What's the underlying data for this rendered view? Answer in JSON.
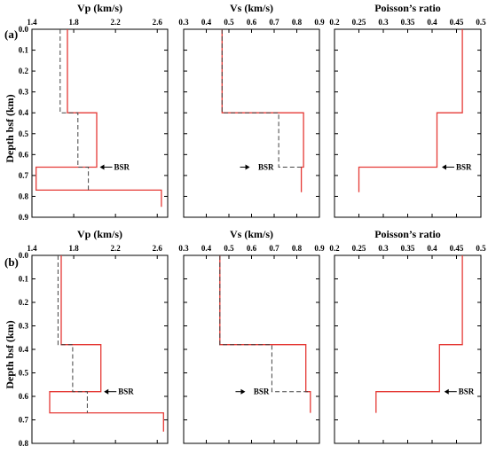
{
  "figure": {
    "ylabel": "Depth bsf (km)",
    "colors": {
      "red": "#e53935",
      "dash": "#444444",
      "frame": "#000000"
    }
  },
  "chart_data": [
    {
      "type": "line",
      "panel": "(a)",
      "title": "Vp (km/s)",
      "xlim": [
        1.4,
        2.7
      ],
      "ylim": [
        0,
        0.9
      ],
      "xticks": [
        {
          "v": 1.4,
          "t": "1.4"
        },
        {
          "v": 1.8,
          "t": "1.8"
        },
        {
          "v": 2.2,
          "t": "2.2"
        },
        {
          "v": 2.6,
          "t": "2.6"
        }
      ],
      "yticks": [
        {
          "v": 0.0,
          "t": "0.0"
        },
        {
          "v": 0.1,
          "t": "0.1"
        },
        {
          "v": 0.2,
          "t": "0.2"
        },
        {
          "v": 0.3,
          "t": "0.3"
        },
        {
          "v": 0.4,
          "t": "0.4"
        },
        {
          "v": 0.5,
          "t": "0.5"
        },
        {
          "v": 0.6,
          "t": "0.6"
        },
        {
          "v": 0.7,
          "t": "0.7"
        },
        {
          "v": 0.8,
          "t": "0.8"
        },
        {
          "v": 0.9,
          "t": "0.9"
        }
      ],
      "series": [
        {
          "style": "solid",
          "points": [
            [
              1.74,
              0
            ],
            [
              1.74,
              0.4
            ],
            [
              2.02,
              0.4
            ],
            [
              2.02,
              0.66
            ],
            [
              1.44,
              0.66
            ],
            [
              1.44,
              0.77
            ],
            [
              2.64,
              0.77
            ],
            [
              2.64,
              0.85
            ]
          ]
        },
        {
          "style": "dashed",
          "points": [
            [
              1.67,
              0
            ],
            [
              1.67,
              0.4
            ],
            [
              1.84,
              0.4
            ],
            [
              1.84,
              0.66
            ],
            [
              1.94,
              0.66
            ],
            [
              1.94,
              0.77
            ]
          ]
        }
      ],
      "annotation": {
        "text": "BSR",
        "x": 2.05,
        "y": 0.66,
        "side": "right"
      }
    },
    {
      "type": "line",
      "panel": "(a)",
      "title": "Vs (km/s)",
      "xlim": [
        0.3,
        0.9
      ],
      "ylim": [
        0,
        0.9
      ],
      "xticks": [
        {
          "v": 0.3,
          "t": "0.3"
        },
        {
          "v": 0.4,
          "t": "0.4"
        },
        {
          "v": 0.5,
          "t": "0.5"
        },
        {
          "v": 0.6,
          "t": "0.6"
        },
        {
          "v": 0.7,
          "t": "0.7"
        },
        {
          "v": 0.8,
          "t": "0.8"
        },
        {
          "v": 0.9,
          "t": "0.9"
        }
      ],
      "yticks": [],
      "series": [
        {
          "style": "solid",
          "points": [
            [
              0.47,
              0
            ],
            [
              0.47,
              0.4
            ],
            [
              0.83,
              0.4
            ],
            [
              0.83,
              0.66
            ],
            [
              0.82,
              0.66
            ],
            [
              0.82,
              0.78
            ]
          ]
        },
        {
          "style": "dashed",
          "points": [
            [
              0.47,
              0
            ],
            [
              0.47,
              0.4
            ],
            [
              0.72,
              0.4
            ],
            [
              0.72,
              0.66
            ],
            [
              0.82,
              0.66
            ]
          ]
        }
      ],
      "annotation": {
        "text": "BSR",
        "x": 0.71,
        "y": 0.66,
        "side": "left"
      }
    },
    {
      "type": "line",
      "panel": "(a)",
      "title": "Poisson’s ratio",
      "xlim": [
        0.2,
        0.5
      ],
      "ylim": [
        0,
        0.9
      ],
      "xticks": [
        {
          "v": 0.2,
          "t": "0.2"
        },
        {
          "v": 0.25,
          "t": "0.25"
        },
        {
          "v": 0.3,
          "t": "0.3"
        },
        {
          "v": 0.35,
          "t": "0.35"
        },
        {
          "v": 0.4,
          "t": "0.4"
        },
        {
          "v": 0.45,
          "t": "0.45"
        },
        {
          "v": 0.5,
          "t": "0.5"
        }
      ],
      "yticks": [],
      "series": [
        {
          "style": "solid",
          "points": [
            [
              0.462,
              0
            ],
            [
              0.462,
              0.4
            ],
            [
              0.41,
              0.4
            ],
            [
              0.41,
              0.66
            ],
            [
              0.25,
              0.66
            ],
            [
              0.25,
              0.78
            ]
          ]
        }
      ],
      "annotation": {
        "text": "BSR",
        "x": 0.42,
        "y": 0.66,
        "side": "right"
      }
    },
    {
      "type": "line",
      "panel": "(b)",
      "title": "Vp (km/s)",
      "xlim": [
        1.4,
        2.7
      ],
      "ylim": [
        0,
        0.8
      ],
      "xticks": [
        {
          "v": 1.4,
          "t": "1.4"
        },
        {
          "v": 1.8,
          "t": "1.8"
        },
        {
          "v": 2.2,
          "t": "2.2"
        },
        {
          "v": 2.6,
          "t": "2.6"
        }
      ],
      "yticks": [
        {
          "v": 0.0,
          "t": "0.0"
        },
        {
          "v": 0.1,
          "t": "0.1"
        },
        {
          "v": 0.2,
          "t": "0.2"
        },
        {
          "v": 0.3,
          "t": "0.3"
        },
        {
          "v": 0.4,
          "t": "0.4"
        },
        {
          "v": 0.5,
          "t": "0.5"
        },
        {
          "v": 0.6,
          "t": "0.6"
        },
        {
          "v": 0.7,
          "t": "0.7"
        },
        {
          "v": 0.8,
          "t": "0.8"
        }
      ],
      "series": [
        {
          "style": "solid",
          "points": [
            [
              1.68,
              0
            ],
            [
              1.68,
              0.38
            ],
            [
              2.06,
              0.38
            ],
            [
              2.06,
              0.58
            ],
            [
              1.57,
              0.58
            ],
            [
              1.57,
              0.67
            ],
            [
              2.66,
              0.67
            ],
            [
              2.66,
              0.75
            ]
          ]
        },
        {
          "style": "dashed",
          "points": [
            [
              1.65,
              0
            ],
            [
              1.65,
              0.38
            ],
            [
              1.79,
              0.38
            ],
            [
              1.79,
              0.58
            ],
            [
              1.93,
              0.58
            ],
            [
              1.93,
              0.67
            ]
          ]
        }
      ],
      "annotation": {
        "text": "BSR",
        "x": 2.09,
        "y": 0.58,
        "side": "right"
      }
    },
    {
      "type": "line",
      "panel": "(b)",
      "title": "Vs (km/s)",
      "xlim": [
        0.3,
        0.9
      ],
      "ylim": [
        0,
        0.8
      ],
      "xticks": [
        {
          "v": 0.3,
          "t": "0.3"
        },
        {
          "v": 0.4,
          "t": "0.4"
        },
        {
          "v": 0.5,
          "t": "0.5"
        },
        {
          "v": 0.6,
          "t": "0.6"
        },
        {
          "v": 0.7,
          "t": "0.7"
        },
        {
          "v": 0.8,
          "t": "0.8"
        },
        {
          "v": 0.9,
          "t": "0.9"
        }
      ],
      "yticks": [],
      "series": [
        {
          "style": "solid",
          "points": [
            [
              0.46,
              0
            ],
            [
              0.46,
              0.38
            ],
            [
              0.84,
              0.38
            ],
            [
              0.84,
              0.58
            ],
            [
              0.86,
              0.58
            ],
            [
              0.86,
              0.67
            ]
          ]
        },
        {
          "style": "dashed",
          "points": [
            [
              0.46,
              0
            ],
            [
              0.46,
              0.38
            ],
            [
              0.69,
              0.38
            ],
            [
              0.69,
              0.58
            ],
            [
              0.86,
              0.58
            ]
          ]
        }
      ],
      "annotation": {
        "text": "BSR",
        "x": 0.69,
        "y": 0.58,
        "side": "left"
      }
    },
    {
      "type": "line",
      "panel": "(b)",
      "title": "Poisson’s ratio",
      "xlim": [
        0.2,
        0.5
      ],
      "ylim": [
        0,
        0.8
      ],
      "xticks": [
        {
          "v": 0.2,
          "t": "0.2"
        },
        {
          "v": 0.25,
          "t": "0.25"
        },
        {
          "v": 0.3,
          "t": "0.3"
        },
        {
          "v": 0.35,
          "t": "0.35"
        },
        {
          "v": 0.4,
          "t": "0.4"
        },
        {
          "v": 0.45,
          "t": "0.45"
        },
        {
          "v": 0.5,
          "t": "0.5"
        }
      ],
      "yticks": [],
      "series": [
        {
          "style": "solid",
          "points": [
            [
              0.462,
              0
            ],
            [
              0.462,
              0.38
            ],
            [
              0.415,
              0.38
            ],
            [
              0.415,
              0.58
            ],
            [
              0.285,
              0.58
            ],
            [
              0.285,
              0.67
            ]
          ]
        }
      ],
      "annotation": {
        "text": "BSR",
        "x": 0.425,
        "y": 0.58,
        "side": "right"
      }
    }
  ]
}
